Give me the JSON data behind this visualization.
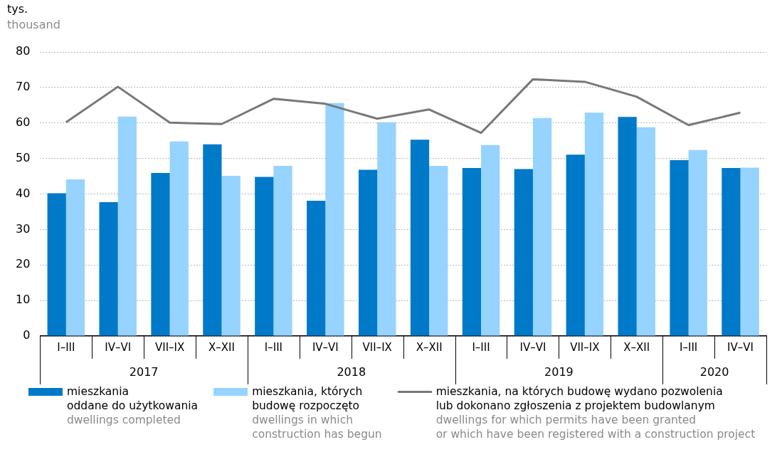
{
  "chart_data": {
    "type": "bar",
    "ylabel": "tys.\nthousand",
    "categories": [
      "I–III",
      "IV–VI",
      "VII–IX",
      "X–XII",
      "I–III",
      "IV–VI",
      "VII–IX",
      "X–XII",
      "I–III",
      "IV–VI",
      "VII–IX",
      "X–XII",
      "I–III",
      "IV–VI"
    ],
    "annotations": [
      "2017",
      "2018",
      "2019",
      "2020"
    ],
    "series": [
      {
        "name": "mieszkania\noddane do użytkowania\ndwellings completed",
        "color": "#0079c8",
        "values": [
          40.2,
          37.7,
          45.9,
          54.0,
          44.8,
          38.1,
          46.8,
          55.3,
          47.3,
          47.0,
          51.1,
          61.7,
          49.5,
          47.3
        ]
      },
      {
        "name": "mieszkania, których\nbudowę rozpoczęto\ndwellings in which\nconstruction has begun",
        "color": "#96d3ff",
        "values": [
          44.1,
          61.8,
          54.8,
          45.1,
          47.9,
          65.6,
          60.2,
          47.9,
          53.8,
          61.4,
          62.9,
          58.8,
          52.4,
          47.4
        ]
      },
      {
        "type": "line",
        "name": "mieszkania, na których budowę wydano pozwolenia\nlub dokonano zgłoszenia z projektem budowlanym\ndwellings for which permits have been granted\nor which have been registered with a construction project",
        "color": "#787878",
        "values": [
          60.2,
          70.2,
          60.1,
          59.7,
          66.8,
          65.4,
          61.2,
          63.8,
          57.2,
          72.3,
          71.6,
          67.4,
          59.4,
          62.9
        ]
      }
    ],
    "ylim": [
      0,
      80
    ],
    "yticks": [
      0,
      10,
      20,
      30,
      40,
      50,
      60,
      70,
      80
    ],
    "grid": "y",
    "legend": "bottom",
    "marker": "none",
    "line_style": "solid"
  }
}
